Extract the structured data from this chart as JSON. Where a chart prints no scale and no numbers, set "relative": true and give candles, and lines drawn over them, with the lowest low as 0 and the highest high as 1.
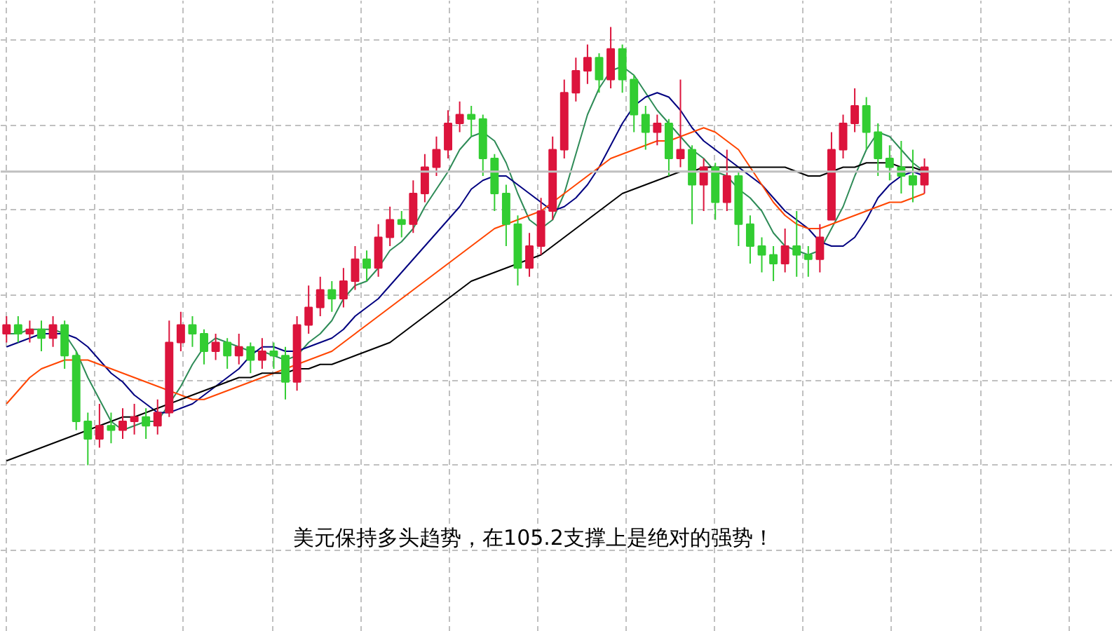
{
  "chart_data": {
    "type": "candlestick",
    "relative": true,
    "grid": true,
    "categories": [
      null,
      null,
      null,
      null,
      null,
      null,
      null,
      null,
      null,
      null,
      null,
      null,
      null,
      null,
      null,
      null,
      null,
      null,
      null,
      null,
      null,
      null,
      null,
      null,
      null,
      null,
      null,
      null,
      null,
      null,
      null,
      null,
      null,
      null,
      null,
      null,
      null,
      null,
      null,
      null,
      null,
      null,
      null,
      null,
      null,
      null,
      null,
      null,
      null,
      null,
      null,
      null,
      null,
      null,
      null,
      null,
      null,
      null,
      null,
      null,
      null,
      null,
      null,
      null,
      null,
      null,
      null,
      null,
      null,
      null,
      null,
      null,
      null,
      null,
      null,
      null,
      null,
      null,
      null,
      null
    ],
    "ohlc": [
      [
        0.3,
        0.34,
        0.28,
        0.32
      ],
      [
        0.32,
        0.34,
        0.28,
        0.3
      ],
      [
        0.3,
        0.33,
        0.28,
        0.31
      ],
      [
        0.31,
        0.33,
        0.26,
        0.29
      ],
      [
        0.29,
        0.34,
        0.27,
        0.32
      ],
      [
        0.32,
        0.33,
        0.22,
        0.25
      ],
      [
        0.25,
        0.26,
        0.08,
        0.1
      ],
      [
        0.1,
        0.12,
        0.0,
        0.06
      ],
      [
        0.06,
        0.14,
        0.04,
        0.09
      ],
      [
        0.09,
        0.12,
        0.05,
        0.08
      ],
      [
        0.08,
        0.13,
        0.06,
        0.1
      ],
      [
        0.1,
        0.14,
        0.07,
        0.11
      ],
      [
        0.11,
        0.13,
        0.06,
        0.09
      ],
      [
        0.09,
        0.15,
        0.07,
        0.12
      ],
      [
        0.12,
        0.33,
        0.11,
        0.28
      ],
      [
        0.28,
        0.35,
        0.26,
        0.32
      ],
      [
        0.32,
        0.34,
        0.27,
        0.3
      ],
      [
        0.3,
        0.31,
        0.23,
        0.26
      ],
      [
        0.26,
        0.3,
        0.24,
        0.28
      ],
      [
        0.28,
        0.29,
        0.22,
        0.25
      ],
      [
        0.25,
        0.3,
        0.23,
        0.27
      ],
      [
        0.27,
        0.28,
        0.21,
        0.24
      ],
      [
        0.24,
        0.29,
        0.22,
        0.26
      ],
      [
        0.26,
        0.28,
        0.22,
        0.25
      ],
      [
        0.25,
        0.27,
        0.15,
        0.19
      ],
      [
        0.19,
        0.34,
        0.17,
        0.32
      ],
      [
        0.32,
        0.41,
        0.3,
        0.36
      ],
      [
        0.36,
        0.43,
        0.34,
        0.4
      ],
      [
        0.4,
        0.42,
        0.35,
        0.38
      ],
      [
        0.38,
        0.45,
        0.36,
        0.42
      ],
      [
        0.42,
        0.5,
        0.4,
        0.47
      ],
      [
        0.47,
        0.49,
        0.42,
        0.45
      ],
      [
        0.45,
        0.55,
        0.43,
        0.52
      ],
      [
        0.52,
        0.59,
        0.5,
        0.56
      ],
      [
        0.56,
        0.58,
        0.52,
        0.55
      ],
      [
        0.55,
        0.65,
        0.53,
        0.62
      ],
      [
        0.62,
        0.71,
        0.6,
        0.68
      ],
      [
        0.68,
        0.75,
        0.66,
        0.72
      ],
      [
        0.72,
        0.81,
        0.7,
        0.78
      ],
      [
        0.78,
        0.83,
        0.76,
        0.8
      ],
      [
        0.8,
        0.82,
        0.75,
        0.79
      ],
      [
        0.79,
        0.8,
        0.66,
        0.7
      ],
      [
        0.7,
        0.71,
        0.58,
        0.62
      ],
      [
        0.62,
        0.64,
        0.5,
        0.55
      ],
      [
        0.55,
        0.57,
        0.41,
        0.45
      ],
      [
        0.45,
        0.53,
        0.43,
        0.5
      ],
      [
        0.5,
        0.61,
        0.48,
        0.58
      ],
      [
        0.58,
        0.75,
        0.56,
        0.72
      ],
      [
        0.72,
        0.88,
        0.7,
        0.85
      ],
      [
        0.85,
        0.93,
        0.83,
        0.9
      ],
      [
        0.9,
        0.96,
        0.87,
        0.93
      ],
      [
        0.93,
        0.94,
        0.85,
        0.88
      ],
      [
        0.88,
        1.0,
        0.86,
        0.95
      ],
      [
        0.95,
        0.96,
        0.85,
        0.88
      ],
      [
        0.88,
        0.89,
        0.76,
        0.8
      ],
      [
        0.8,
        0.82,
        0.72,
        0.76
      ],
      [
        0.76,
        0.8,
        0.73,
        0.78
      ],
      [
        0.78,
        0.79,
        0.66,
        0.7
      ],
      [
        0.7,
        0.88,
        0.68,
        0.72
      ],
      [
        0.72,
        0.73,
        0.55,
        0.64
      ],
      [
        0.64,
        0.7,
        0.58,
        0.68
      ],
      [
        0.68,
        0.69,
        0.56,
        0.6
      ],
      [
        0.6,
        0.72,
        0.58,
        0.66
      ],
      [
        0.66,
        0.67,
        0.5,
        0.55
      ],
      [
        0.55,
        0.57,
        0.46,
        0.5
      ],
      [
        0.5,
        0.52,
        0.44,
        0.48
      ],
      [
        0.48,
        0.5,
        0.42,
        0.46
      ],
      [
        0.46,
        0.54,
        0.44,
        0.5
      ],
      [
        0.5,
        0.58,
        0.43,
        0.48
      ],
      [
        0.48,
        0.5,
        0.43,
        0.47
      ],
      [
        0.47,
        0.55,
        0.44,
        0.52
      ],
      [
        0.56,
        0.76,
        0.56,
        0.72
      ],
      [
        0.72,
        0.8,
        0.7,
        0.78
      ],
      [
        0.78,
        0.86,
        0.76,
        0.82
      ],
      [
        0.82,
        0.84,
        0.72,
        0.76
      ],
      [
        0.76,
        0.78,
        0.66,
        0.7
      ],
      [
        0.7,
        0.73,
        0.65,
        0.68
      ],
      [
        0.68,
        0.74,
        0.62,
        0.66
      ],
      [
        0.66,
        0.72,
        0.6,
        0.64
      ],
      [
        0.64,
        0.7,
        0.62,
        0.68
      ]
    ],
    "colors": [
      "#dc143c",
      "#32cd32",
      "#dc143c",
      "#32cd32",
      "#dc143c",
      "#32cd32",
      "#32cd32",
      "#32cd32",
      "#dc143c",
      "#32cd32",
      "#dc143c",
      "#dc143c",
      "#32cd32",
      "#dc143c",
      "#dc143c",
      "#dc143c",
      "#32cd32",
      "#32cd32",
      "#dc143c",
      "#32cd32",
      "#dc143c",
      "#32cd32",
      "#dc143c",
      "#32cd32",
      "#32cd32",
      "#dc143c",
      "#dc143c",
      "#dc143c",
      "#32cd32",
      "#dc143c",
      "#dc143c",
      "#32cd32",
      "#dc143c",
      "#dc143c",
      "#32cd32",
      "#dc143c",
      "#dc143c",
      "#dc143c",
      "#dc143c",
      "#dc143c",
      "#32cd32",
      "#32cd32",
      "#32cd32",
      "#32cd32",
      "#32cd32",
      "#dc143c",
      "#dc143c",
      "#dc143c",
      "#dc143c",
      "#dc143c",
      "#dc143c",
      "#32cd32",
      "#dc143c",
      "#32cd32",
      "#32cd32",
      "#32cd32",
      "#dc143c",
      "#32cd32",
      "#dc143c",
      "#32cd32",
      "#dc143c",
      "#32cd32",
      "#dc143c",
      "#32cd32",
      "#32cd32",
      "#32cd32",
      "#32cd32",
      "#dc143c",
      "#32cd32",
      "#32cd32",
      "#dc143c",
      "#dc143c",
      "#dc143c",
      "#dc143c",
      "#32cd32",
      "#32cd32",
      "#32cd32",
      "#32cd32",
      "#32cd32",
      "#dc143c"
    ],
    "series": [
      {
        "type": "line",
        "color": "#2e8b57",
        "values": [
          0.3,
          0.3,
          0.31,
          0.31,
          0.31,
          0.3,
          0.26,
          0.2,
          0.15,
          0.1,
          0.08,
          0.09,
          0.1,
          0.1,
          0.14,
          0.18,
          0.23,
          0.27,
          0.29,
          0.28,
          0.27,
          0.26,
          0.26,
          0.25,
          0.24,
          0.25,
          0.28,
          0.3,
          0.33,
          0.38,
          0.41,
          0.42,
          0.45,
          0.49,
          0.51,
          0.54,
          0.59,
          0.63,
          0.67,
          0.72,
          0.75,
          0.76,
          0.74,
          0.69,
          0.62,
          0.56,
          0.54,
          0.56,
          0.62,
          0.71,
          0.8,
          0.86,
          0.9,
          0.91,
          0.89,
          0.85,
          0.81,
          0.78,
          0.75,
          0.72,
          0.7,
          0.67,
          0.66,
          0.63,
          0.61,
          0.58,
          0.53,
          0.5,
          0.49,
          0.48,
          0.49,
          0.54,
          0.59,
          0.66,
          0.72,
          0.76,
          0.75,
          0.72,
          0.69,
          0.67
        ]
      },
      {
        "type": "line",
        "color": "#000080",
        "values": [
          0.27,
          0.28,
          0.29,
          0.3,
          0.3,
          0.3,
          0.29,
          0.27,
          0.24,
          0.21,
          0.19,
          0.16,
          0.14,
          0.12,
          0.12,
          0.13,
          0.14,
          0.16,
          0.18,
          0.2,
          0.22,
          0.25,
          0.27,
          0.27,
          0.26,
          0.26,
          0.27,
          0.28,
          0.29,
          0.31,
          0.34,
          0.36,
          0.38,
          0.41,
          0.44,
          0.47,
          0.5,
          0.53,
          0.56,
          0.59,
          0.63,
          0.65,
          0.66,
          0.66,
          0.64,
          0.62,
          0.6,
          0.58,
          0.59,
          0.61,
          0.64,
          0.68,
          0.73,
          0.78,
          0.82,
          0.84,
          0.85,
          0.84,
          0.81,
          0.77,
          0.74,
          0.72,
          0.7,
          0.68,
          0.66,
          0.64,
          0.61,
          0.58,
          0.56,
          0.54,
          0.51,
          0.5,
          0.5,
          0.52,
          0.56,
          0.61,
          0.64,
          0.66,
          0.67,
          0.66
        ]
      },
      {
        "type": "line",
        "color": "#ff4500",
        "values": [
          0.14,
          0.17,
          0.2,
          0.22,
          0.23,
          0.24,
          0.24,
          0.24,
          0.23,
          0.22,
          0.21,
          0.2,
          0.19,
          0.18,
          0.17,
          0.16,
          0.15,
          0.15,
          0.16,
          0.17,
          0.18,
          0.19,
          0.2,
          0.21,
          0.22,
          0.23,
          0.24,
          0.25,
          0.26,
          0.28,
          0.3,
          0.32,
          0.34,
          0.36,
          0.38,
          0.4,
          0.42,
          0.44,
          0.46,
          0.48,
          0.5,
          0.52,
          0.54,
          0.55,
          0.56,
          0.57,
          0.58,
          0.6,
          0.62,
          0.64,
          0.66,
          0.68,
          0.7,
          0.71,
          0.72,
          0.73,
          0.74,
          0.74,
          0.75,
          0.76,
          0.77,
          0.76,
          0.74,
          0.72,
          0.68,
          0.64,
          0.6,
          0.57,
          0.55,
          0.54,
          0.54,
          0.55,
          0.56,
          0.57,
          0.58,
          0.59,
          0.6,
          0.6,
          0.61,
          0.62
        ]
      },
      {
        "type": "line",
        "color": "#000000",
        "values": [
          0.01,
          0.02,
          0.03,
          0.04,
          0.05,
          0.06,
          0.07,
          0.08,
          0.09,
          0.1,
          0.11,
          0.11,
          0.12,
          0.13,
          0.14,
          0.15,
          0.16,
          0.17,
          0.18,
          0.19,
          0.2,
          0.2,
          0.21,
          0.21,
          0.21,
          0.22,
          0.22,
          0.23,
          0.23,
          0.24,
          0.25,
          0.26,
          0.27,
          0.28,
          0.3,
          0.32,
          0.34,
          0.36,
          0.38,
          0.4,
          0.42,
          0.43,
          0.44,
          0.45,
          0.46,
          0.47,
          0.48,
          0.5,
          0.52,
          0.54,
          0.56,
          0.58,
          0.6,
          0.62,
          0.63,
          0.64,
          0.65,
          0.66,
          0.67,
          0.67,
          0.68,
          0.68,
          0.68,
          0.68,
          0.68,
          0.68,
          0.68,
          0.68,
          0.67,
          0.66,
          0.66,
          0.67,
          0.68,
          0.68,
          0.69,
          0.69,
          0.69,
          0.68,
          0.68,
          0.67
        ]
      }
    ],
    "ref_lines": [
      {
        "axis": "y",
        "value": 0.67,
        "color": "#c0c0c0"
      }
    ],
    "annotations": [
      "美元保持多头趋势，在105.2支撑上是绝对的强势！"
    ]
  }
}
